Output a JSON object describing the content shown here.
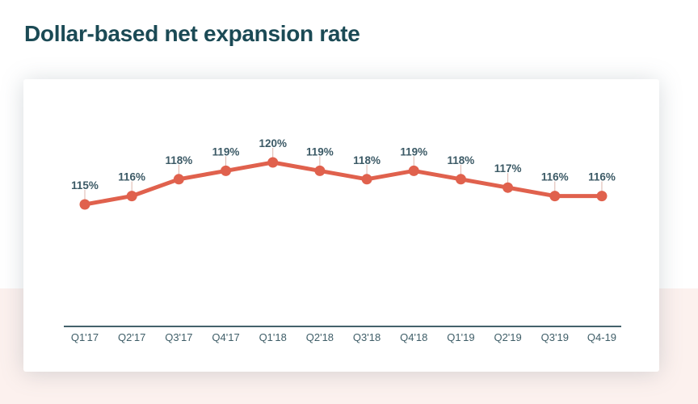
{
  "page": {
    "title": "Dollar-based net expansion rate"
  },
  "chart_data": {
    "type": "line",
    "title": "Dollar-based net expansion rate",
    "categories": [
      "Q1'17",
      "Q2'17",
      "Q3'17",
      "Q4'17",
      "Q1'18",
      "Q2'18",
      "Q3'18",
      "Q4'18",
      "Q1'19",
      "Q2'19",
      "Q3'19",
      "Q4-19"
    ],
    "values": [
      115,
      116,
      118,
      119,
      120,
      119,
      118,
      119,
      118,
      117,
      116,
      116
    ],
    "unit": "%",
    "data_labels": [
      "115%",
      "116%",
      "118%",
      "119%",
      "120%",
      "119%",
      "118%",
      "119%",
      "118%",
      "117%",
      "116%",
      "116%"
    ],
    "xlabel": "",
    "ylabel": "",
    "ylim": [
      113,
      122
    ],
    "grid": false,
    "legend": "none",
    "colors": {
      "line": "#e0614d",
      "marker": "#e0614d",
      "leader_line": "#ddb5ac",
      "value_label": "#3c5a66",
      "axis_line": "#44626b",
      "tick_label": "#3f5e68"
    }
  },
  "colors": {
    "title": "#1b4a55",
    "card_background": "#ffffff",
    "page_background_top": "#ffffff",
    "page_background_bottom": "#fcf1ee"
  }
}
